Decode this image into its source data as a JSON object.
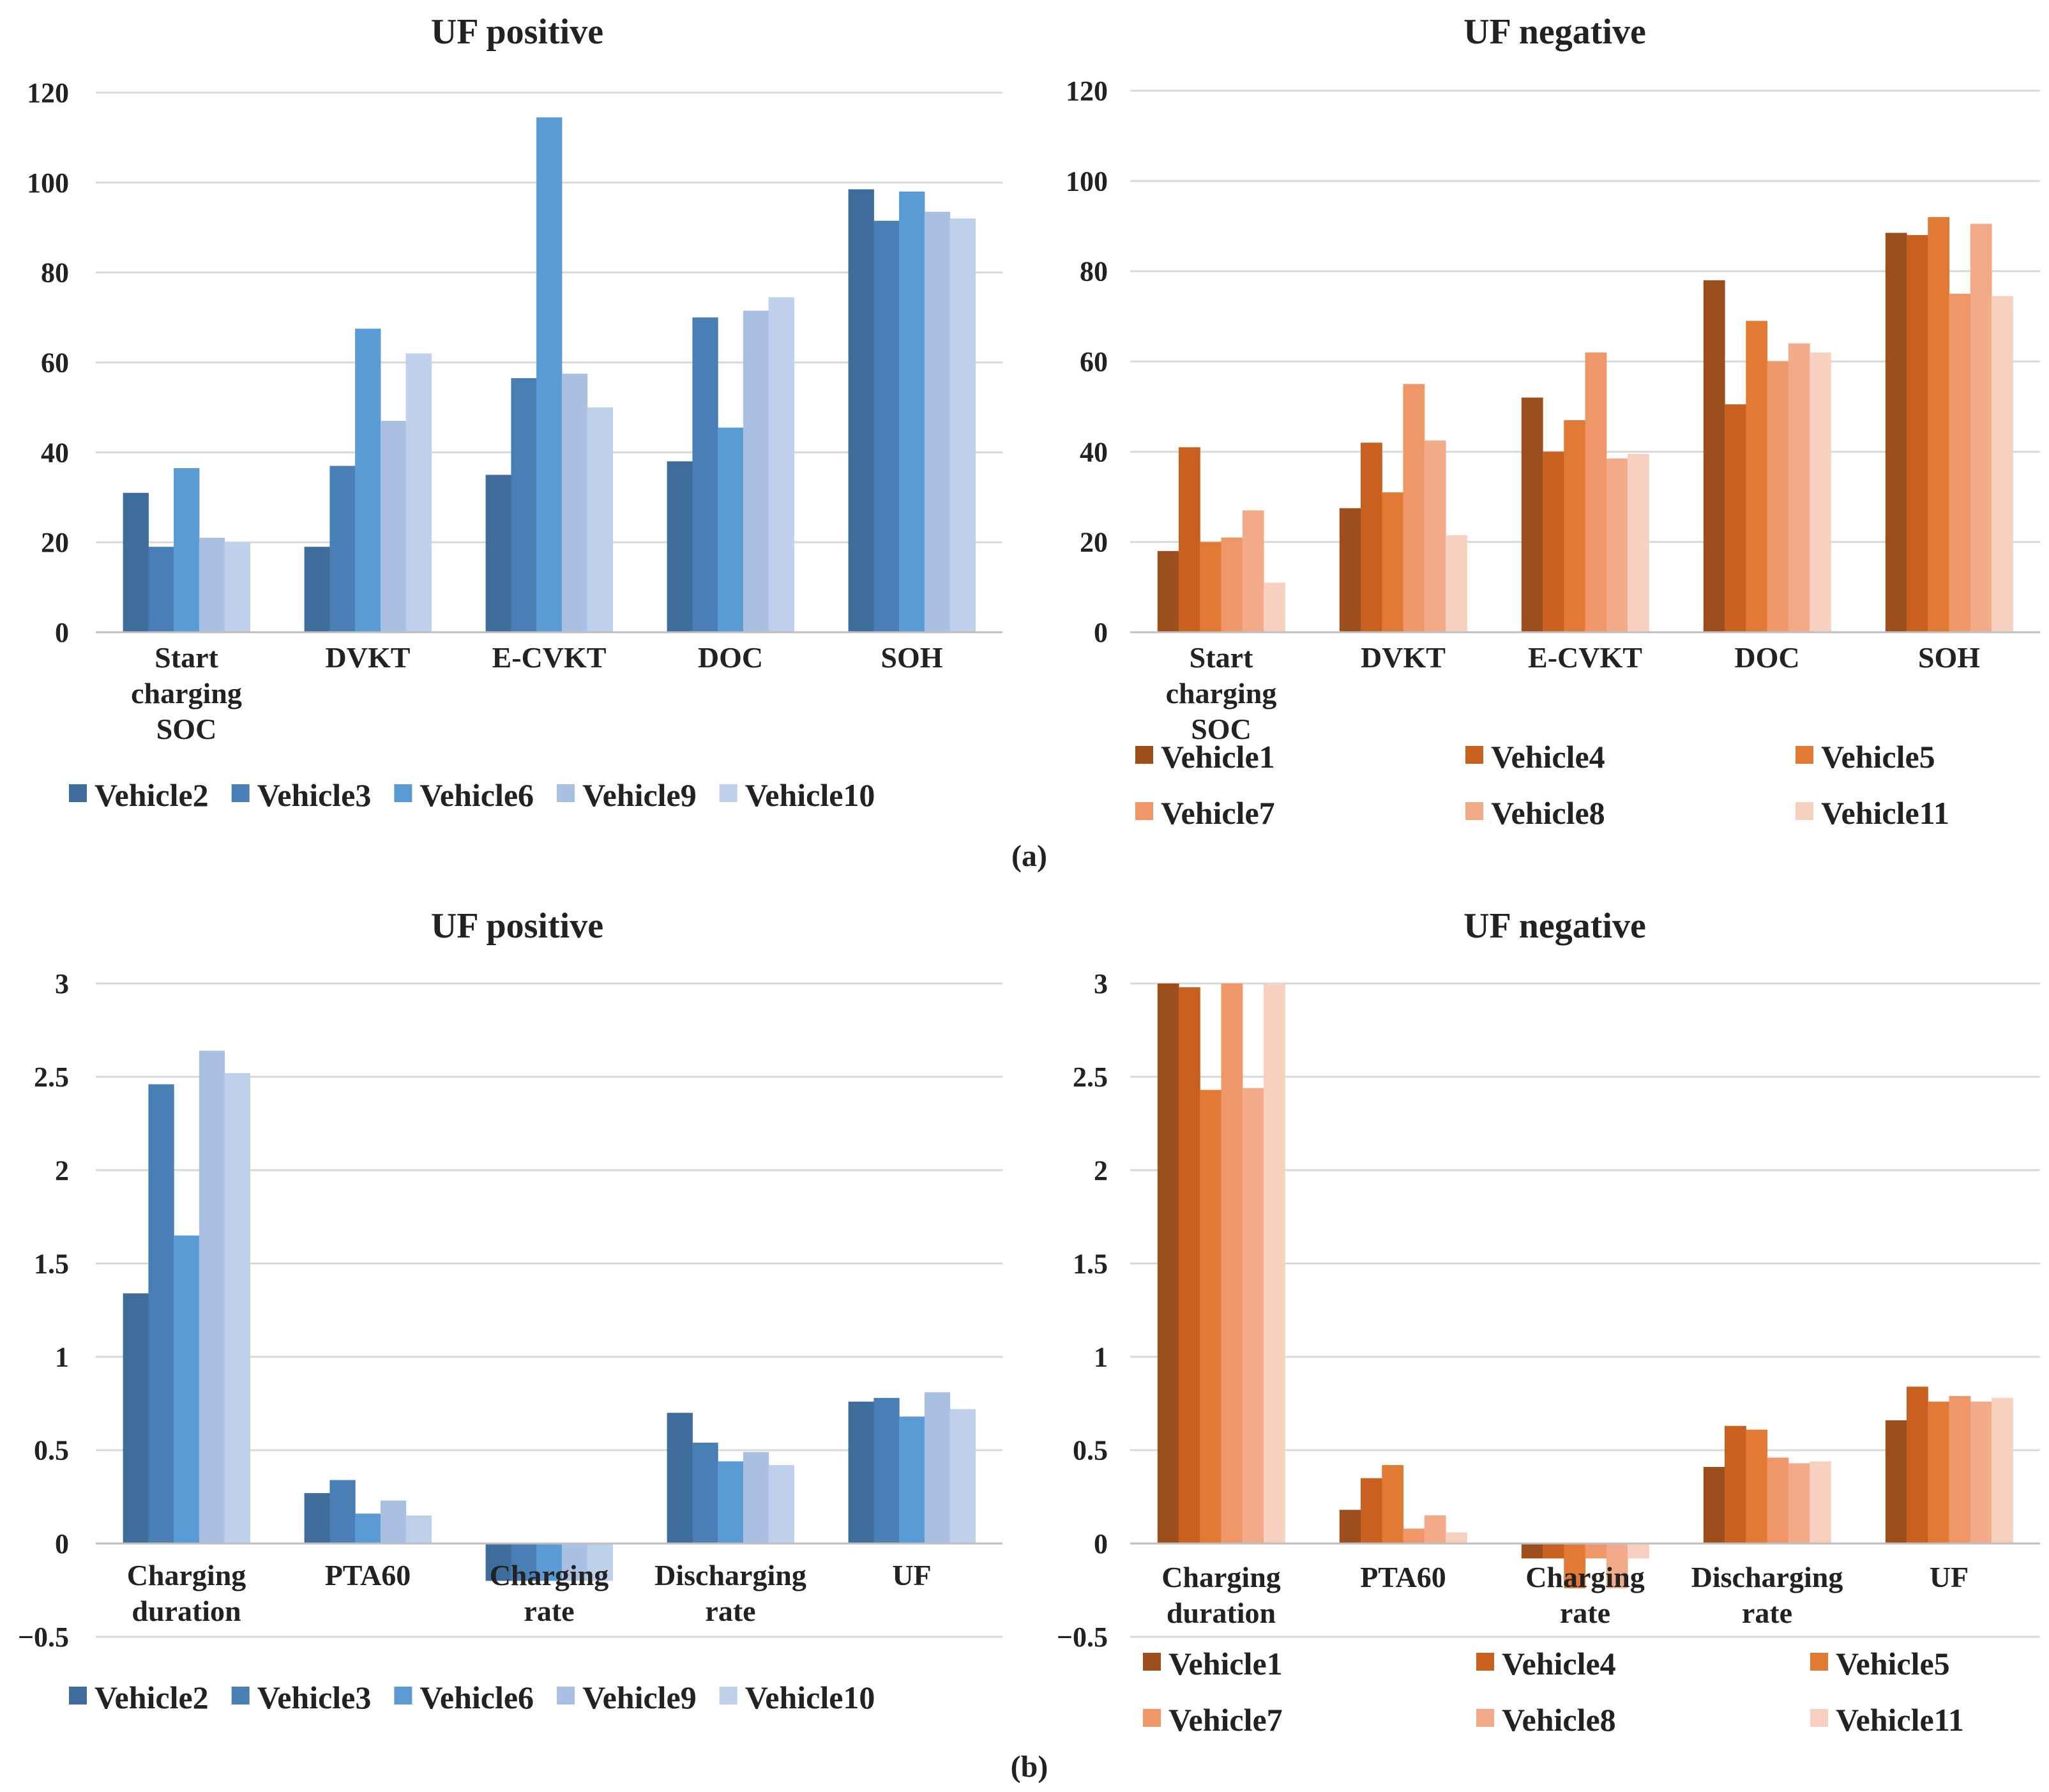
{
  "panel_labels": [
    "(a)",
    "(b)"
  ],
  "chart_data": [
    {
      "type": "bar",
      "title": "UF positive",
      "categories": [
        [
          "Start",
          "charging",
          "SOC"
        ],
        [
          "DVKT"
        ],
        [
          "E-CVKT"
        ],
        [
          "DOC"
        ],
        [
          "SOH"
        ]
      ],
      "ylim": [
        0,
        120
      ],
      "yticks": [
        0,
        20,
        40,
        60,
        80,
        100,
        120
      ],
      "grid": true,
      "legend_position": "bottom",
      "series": [
        {
          "name": "Vehicle2",
          "color": "#3e6d9c",
          "values": [
            31,
            19,
            35,
            38,
            98.5
          ]
        },
        {
          "name": "Vehicle3",
          "color": "#4a7fb5",
          "values": [
            19,
            37,
            56.5,
            70,
            91.5
          ]
        },
        {
          "name": "Vehicle6",
          "color": "#5b9bd5",
          "values": [
            36.5,
            67.5,
            114.5,
            45.5,
            98
          ]
        },
        {
          "name": "Vehicle9",
          "color": "#a9c0e3",
          "values": [
            21,
            47,
            57.5,
            71.5,
            93.5
          ]
        },
        {
          "name": "Vehicle10",
          "color": "#bed0ea",
          "values": [
            20,
            62,
            50,
            74.5,
            92
          ]
        }
      ]
    },
    {
      "type": "bar",
      "title": "UF negative",
      "categories": [
        [
          "Start",
          "charging",
          "SOC"
        ],
        [
          "DVKT"
        ],
        [
          "E-CVKT"
        ],
        [
          "DOC"
        ],
        [
          "SOH"
        ]
      ],
      "ylim": [
        0,
        120
      ],
      "yticks": [
        0,
        20,
        40,
        60,
        80,
        100,
        120
      ],
      "grid": true,
      "legend_position": "bottom",
      "series": [
        {
          "name": "Vehicle1",
          "color": "#9c4f1c",
          "values": [
            18,
            27.5,
            52,
            78,
            88.5
          ]
        },
        {
          "name": "Vehicle4",
          "color": "#c8611f",
          "values": [
            41,
            42,
            40,
            50.5,
            88
          ]
        },
        {
          "name": "Vehicle5",
          "color": "#e07a35",
          "values": [
            20,
            31,
            47,
            69,
            92
          ]
        },
        {
          "name": "Vehicle7",
          "color": "#f0976a",
          "values": [
            21,
            55,
            62,
            60,
            75
          ]
        },
        {
          "name": "Vehicle8",
          "color": "#f2aa88",
          "values": [
            27,
            42.5,
            38.5,
            64,
            90.5
          ]
        },
        {
          "name": "Vehicle11",
          "color": "#f7d0bf",
          "values": [
            11,
            21.5,
            39.5,
            62,
            74.5
          ]
        }
      ]
    },
    {
      "type": "bar",
      "title": "UF positive",
      "categories": [
        [
          "Charging",
          "duration"
        ],
        [
          "PTA60"
        ],
        [
          "Charging",
          "rate"
        ],
        [
          "Discharging",
          "rate"
        ],
        [
          "UF"
        ]
      ],
      "ylim": [
        -0.5,
        3
      ],
      "yticks": [
        3,
        2.5,
        2,
        1.5,
        1,
        0.5,
        0,
        -0.5
      ],
      "ytick_labels": [
        "3",
        "2.5",
        "2",
        "1.5",
        "1",
        "0.5",
        "0",
        "−0.5"
      ],
      "grid": true,
      "legend_position": "bottom",
      "series": [
        {
          "name": "Vehicle2",
          "color": "#3e6d9c",
          "values": [
            1.34,
            0.27,
            -0.2,
            0.7,
            0.76
          ]
        },
        {
          "name": "Vehicle3",
          "color": "#4a7fb5",
          "values": [
            2.46,
            0.34,
            -0.2,
            0.54,
            0.78
          ]
        },
        {
          "name": "Vehicle6",
          "color": "#5b9bd5",
          "values": [
            1.65,
            0.16,
            -0.2,
            0.44,
            0.68
          ]
        },
        {
          "name": "Vehicle9",
          "color": "#a9c0e3",
          "values": [
            2.64,
            0.23,
            -0.2,
            0.49,
            0.81
          ]
        },
        {
          "name": "Vehicle10",
          "color": "#bed0ea",
          "values": [
            2.52,
            0.15,
            -0.2,
            0.42,
            0.72
          ]
        }
      ]
    },
    {
      "type": "bar",
      "title": "UF negative",
      "categories": [
        [
          "Charging",
          "duration"
        ],
        [
          "PTA60"
        ],
        [
          "Charging",
          "rate"
        ],
        [
          "Discharging",
          "rate"
        ],
        [
          "UF"
        ]
      ],
      "ylim": [
        -0.5,
        3
      ],
      "yticks": [
        3,
        2.5,
        2,
        1.5,
        1,
        0.5,
        0,
        -0.5
      ],
      "ytick_labels": [
        "3",
        "2.5",
        "2",
        "1.5",
        "1",
        "0.5",
        "0",
        "−0.5"
      ],
      "grid": true,
      "legend_position": "bottom",
      "series": [
        {
          "name": "Vehicle1",
          "color": "#9c4f1c",
          "values": [
            3.0,
            0.18,
            -0.08,
            0.41,
            0.66
          ]
        },
        {
          "name": "Vehicle4",
          "color": "#c8611f",
          "values": [
            2.98,
            0.35,
            -0.08,
            0.63,
            0.84
          ]
        },
        {
          "name": "Vehicle5",
          "color": "#e07a35",
          "values": [
            2.43,
            0.42,
            -0.24,
            0.61,
            0.76
          ]
        },
        {
          "name": "Vehicle7",
          "color": "#f0976a",
          "values": [
            3.0,
            0.08,
            -0.08,
            0.46,
            0.79
          ]
        },
        {
          "name": "Vehicle8",
          "color": "#f2aa88",
          "values": [
            2.44,
            0.15,
            -0.24,
            0.43,
            0.76
          ]
        },
        {
          "name": "Vehicle11",
          "color": "#f7d0bf",
          "values": [
            3.0,
            0.06,
            -0.08,
            0.44,
            0.78
          ]
        }
      ]
    }
  ]
}
